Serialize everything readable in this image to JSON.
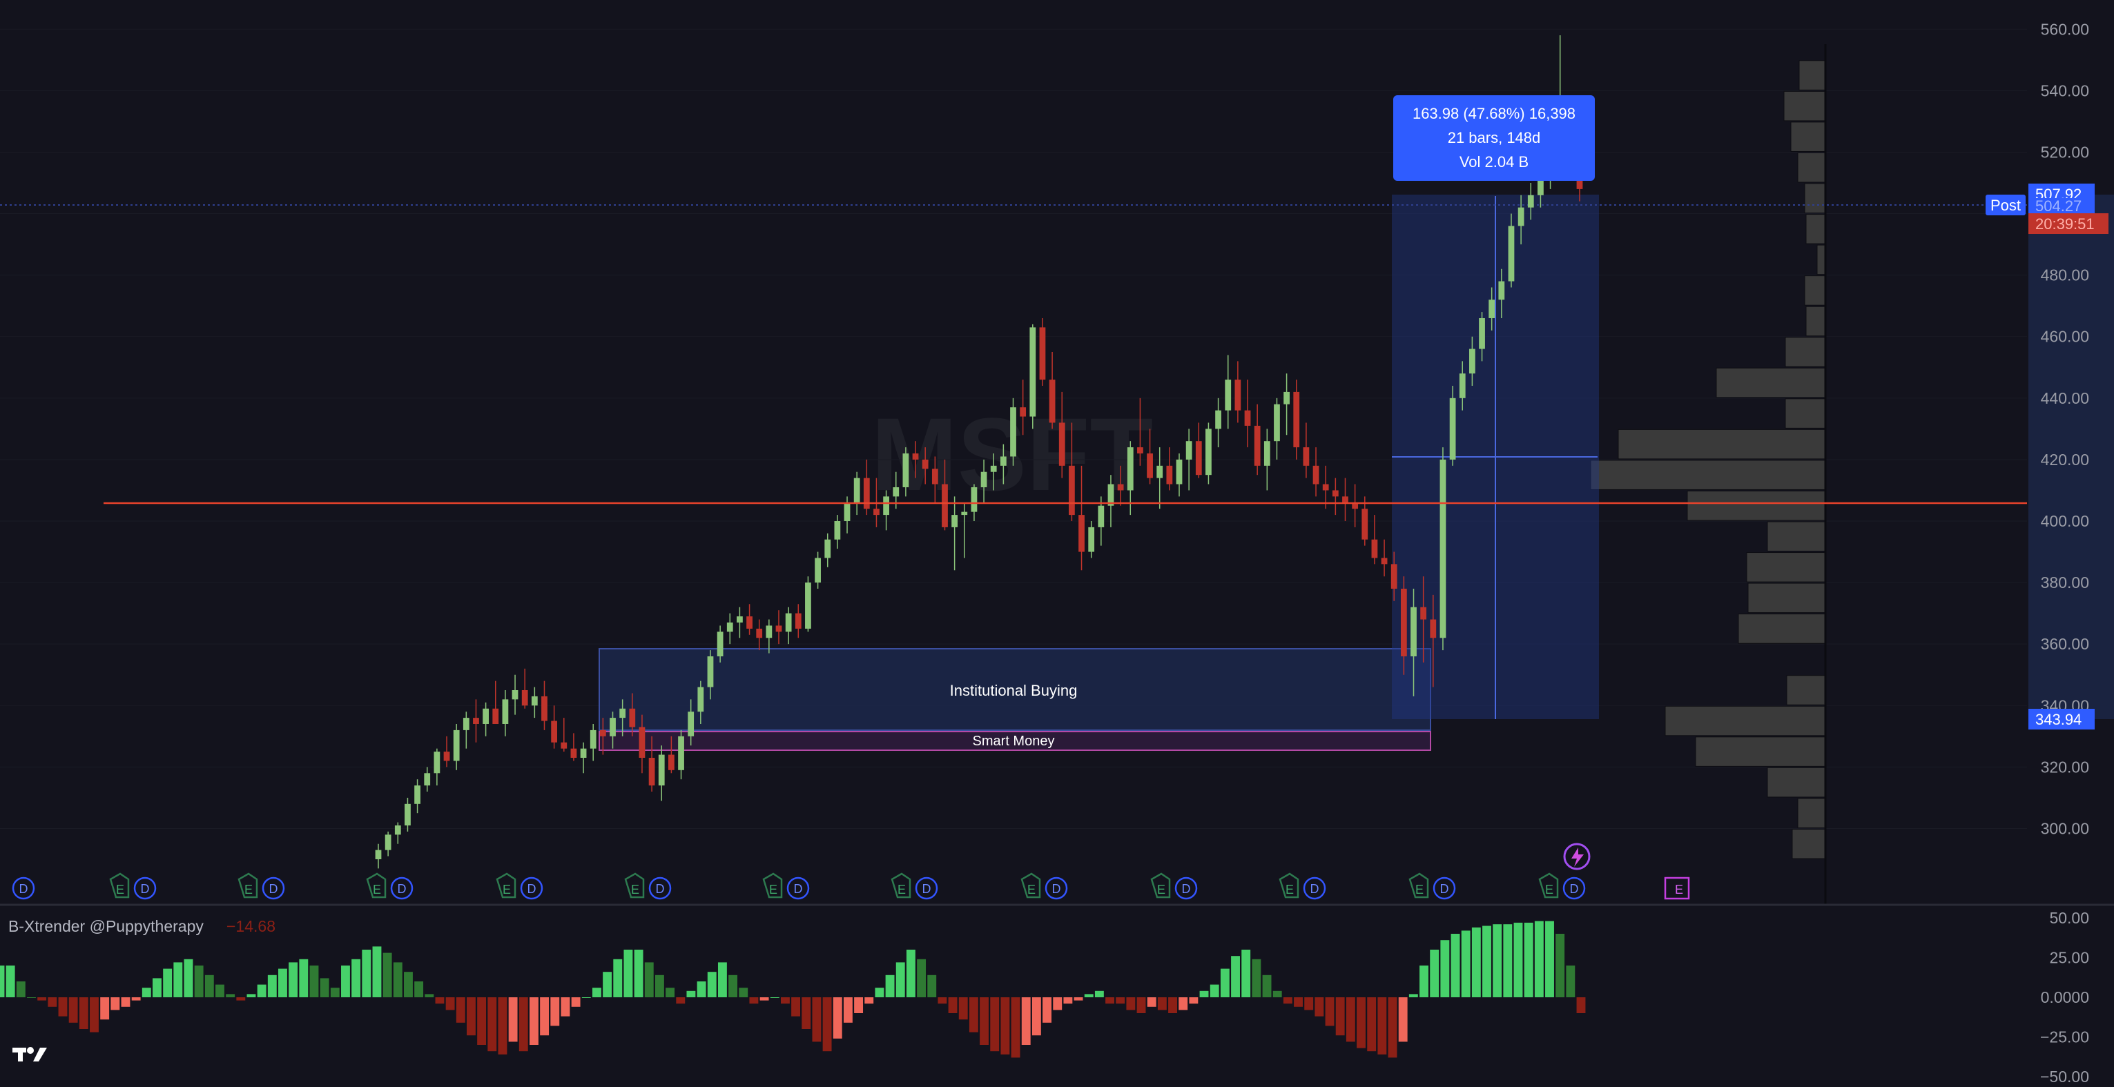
{
  "symbol_watermark": "MSFT",
  "colors": {
    "background": "#13131d",
    "up": "#8cc57a",
    "down": "#c0342b",
    "histogram_up_strong": "#47d16a",
    "histogram_up_weak": "#2f7a33",
    "histogram_down_strong": "#f0675a",
    "histogram_down_weak": "#8c2016",
    "accent_blue": "#3355ff",
    "zone_institutional": "#1e2b52",
    "zone_smart_money_border": "#b44aa6",
    "support_line": "#e8432c",
    "volume_profile": "#3a3a3a"
  },
  "measure_tooltip": {
    "line1": "163.98 (47.68%) 16,398",
    "line2": "21 bars, 148d",
    "line3": "Vol 2.04 B"
  },
  "price_axis": {
    "ticks": [
      "560.00",
      "540.00",
      "520.00",
      "500.00",
      "480.00",
      "460.00",
      "440.00",
      "420.00",
      "400.00",
      "380.00",
      "360.00",
      "340.00",
      "320.00",
      "300.00"
    ],
    "post_label": "Post",
    "last_price": "507.92",
    "post_price": "504.27",
    "countdown": "20:39:51",
    "range_low_label": "343.94"
  },
  "zones": {
    "institutional": "Institutional Buying",
    "smart_money": "Smart Money"
  },
  "events": {
    "earnings": "E",
    "dividend": "D"
  },
  "indicator": {
    "title": "B-Xtrender @Puppytherapy",
    "value": "−14.68",
    "ticks": [
      "50.00",
      "25.00",
      "0.0000",
      "−25.00",
      "−50.00"
    ]
  },
  "logo": "TV",
  "chart_data": [
    {
      "type": "candlestick",
      "title": "MSFT",
      "ylim": [
        290,
        565
      ],
      "support_level": 412,
      "measure_range": {
        "from": 343.94,
        "to": 507.92,
        "change": 163.98,
        "pct": 47.68,
        "bars": 21,
        "days": 148
      },
      "zones": [
        {
          "label": "Institutional Buying",
          "y": [
            342,
            366
          ]
        },
        {
          "label": "Smart Money",
          "y": [
            335,
            341
          ]
        }
      ],
      "candles": [
        [
          290,
          295,
          287,
          293
        ],
        [
          293,
          299,
          291,
          298
        ],
        [
          298,
          302,
          295,
          301
        ],
        [
          301,
          310,
          299,
          308
        ],
        [
          308,
          316,
          305,
          314
        ],
        [
          314,
          320,
          312,
          318
        ],
        [
          318,
          326,
          314,
          325
        ],
        [
          325,
          330,
          320,
          322
        ],
        [
          322,
          334,
          319,
          332
        ],
        [
          332,
          338,
          326,
          336
        ],
        [
          336,
          342,
          328,
          334
        ],
        [
          334,
          341,
          330,
          339
        ],
        [
          339,
          348,
          334,
          334
        ],
        [
          334,
          345,
          330,
          342
        ],
        [
          342,
          350,
          337,
          345
        ],
        [
          345,
          352,
          339,
          340
        ],
        [
          340,
          346,
          336,
          343
        ],
        [
          343,
          348,
          332,
          335
        ],
        [
          335,
          340,
          326,
          328
        ],
        [
          328,
          336,
          325,
          326
        ],
        [
          326,
          331,
          322,
          323
        ],
        [
          323,
          328,
          318,
          326
        ],
        [
          326,
          334,
          322,
          332
        ],
        [
          332,
          336,
          324,
          330
        ],
        [
          330,
          338,
          326,
          336
        ],
        [
          336,
          342,
          330,
          339
        ],
        [
          339,
          344,
          330,
          333
        ],
        [
          333,
          337,
          318,
          323
        ],
        [
          323,
          330,
          312,
          314
        ],
        [
          314,
          327,
          309,
          324
        ],
        [
          324,
          330,
          318,
          319
        ],
        [
          319,
          332,
          316,
          330
        ],
        [
          330,
          342,
          327,
          338
        ],
        [
          338,
          348,
          334,
          346
        ],
        [
          346,
          358,
          342,
          356
        ],
        [
          356,
          366,
          354,
          364
        ],
        [
          364,
          370,
          360,
          367
        ],
        [
          367,
          372,
          362,
          369
        ],
        [
          369,
          373,
          363,
          365
        ],
        [
          365,
          368,
          358,
          362
        ],
        [
          362,
          368,
          357,
          366
        ],
        [
          366,
          371,
          360,
          364
        ],
        [
          364,
          372,
          360,
          370
        ],
        [
          370,
          373,
          362,
          365
        ],
        [
          365,
          382,
          364,
          380
        ],
        [
          380,
          390,
          378,
          388
        ],
        [
          388,
          396,
          385,
          394
        ],
        [
          394,
          402,
          391,
          400
        ],
        [
          400,
          408,
          396,
          406
        ],
        [
          406,
          416,
          402,
          414
        ],
        [
          414,
          420,
          402,
          404
        ],
        [
          404,
          414,
          398,
          402
        ],
        [
          402,
          410,
          397,
          408
        ],
        [
          408,
          416,
          404,
          411
        ],
        [
          411,
          424,
          408,
          422
        ],
        [
          422,
          426,
          414,
          420
        ],
        [
          420,
          424,
          412,
          417
        ],
        [
          417,
          421,
          406,
          412
        ],
        [
          412,
          420,
          397,
          398
        ],
        [
          398,
          408,
          384,
          402
        ],
        [
          402,
          406,
          388,
          403
        ],
        [
          403,
          412,
          400,
          411
        ],
        [
          411,
          420,
          406,
          416
        ],
        [
          416,
          422,
          410,
          418
        ],
        [
          418,
          425,
          412,
          421
        ],
        [
          421,
          440,
          418,
          437
        ],
        [
          437,
          446,
          428,
          434
        ],
        [
          434,
          464,
          430,
          463
        ],
        [
          463,
          466,
          444,
          446
        ],
        [
          446,
          455,
          430,
          432
        ],
        [
          432,
          442,
          414,
          418
        ],
        [
          418,
          432,
          400,
          402
        ],
        [
          402,
          418,
          384,
          390
        ],
        [
          390,
          400,
          388,
          398
        ],
        [
          398,
          408,
          392,
          405
        ],
        [
          405,
          415,
          398,
          412
        ],
        [
          412,
          418,
          405,
          410
        ],
        [
          410,
          426,
          402,
          424
        ],
        [
          424,
          440,
          418,
          422
        ],
        [
          422,
          430,
          412,
          414
        ],
        [
          414,
          424,
          404,
          418
        ],
        [
          418,
          424,
          410,
          412
        ],
        [
          412,
          422,
          408,
          420
        ],
        [
          420,
          430,
          410,
          426
        ],
        [
          426,
          432,
          414,
          415
        ],
        [
          415,
          432,
          412,
          430
        ],
        [
          430,
          440,
          424,
          436
        ],
        [
          436,
          454,
          430,
          446
        ],
        [
          446,
          452,
          432,
          436
        ],
        [
          436,
          446,
          424,
          431
        ],
        [
          431,
          438,
          415,
          418
        ],
        [
          418,
          430,
          410,
          426
        ],
        [
          426,
          440,
          420,
          438
        ],
        [
          438,
          448,
          428,
          442
        ],
        [
          442,
          446,
          420,
          424
        ],
        [
          424,
          432,
          414,
          418
        ],
        [
          418,
          424,
          408,
          412
        ],
        [
          412,
          418,
          404,
          410
        ],
        [
          410,
          414,
          402,
          408
        ],
        [
          408,
          414,
          400,
          406
        ],
        [
          406,
          412,
          398,
          404
        ],
        [
          404,
          408,
          392,
          394
        ],
        [
          394,
          402,
          386,
          388
        ],
        [
          388,
          394,
          382,
          386
        ],
        [
          386,
          390,
          374,
          378
        ],
        [
          378,
          382,
          350,
          356
        ],
        [
          356,
          378,
          343,
          372
        ],
        [
          372,
          382,
          354,
          368
        ],
        [
          368,
          376,
          346,
          362
        ],
        [
          362,
          424,
          358,
          420
        ],
        [
          420,
          444,
          418,
          440
        ],
        [
          440,
          452,
          436,
          448
        ],
        [
          448,
          460,
          444,
          456
        ],
        [
          456,
          468,
          452,
          466
        ],
        [
          466,
          476,
          462,
          472
        ],
        [
          472,
          482,
          466,
          478
        ],
        [
          478,
          500,
          476,
          496
        ],
        [
          496,
          506,
          490,
          502
        ],
        [
          502,
          510,
          498,
          506
        ],
        [
          506,
          516,
          502,
          512
        ],
        [
          512,
          526,
          508,
          522
        ],
        [
          522,
          558,
          518,
          530
        ],
        [
          530,
          534,
          520,
          526
        ],
        [
          526,
          530,
          504,
          508
        ]
      ]
    },
    {
      "type": "histogram",
      "title": "B-Xtrender @Puppytherapy",
      "ylim": [
        -50,
        50
      ],
      "values": [
        20,
        20,
        10,
        0,
        -2,
        -6,
        -12,
        -16,
        -20,
        -22,
        -14,
        -8,
        -6,
        -2,
        6,
        12,
        18,
        22,
        24,
        20,
        14,
        8,
        2,
        -2,
        2,
        8,
        14,
        18,
        22,
        24,
        20,
        12,
        6,
        20,
        24,
        30,
        32,
        28,
        22,
        16,
        10,
        2,
        -4,
        -8,
        -16,
        -24,
        -30,
        -34,
        -36,
        -28,
        -34,
        -30,
        -24,
        -18,
        -12,
        -6,
        0,
        6,
        16,
        24,
        30,
        30,
        22,
        14,
        6,
        -4,
        4,
        10,
        16,
        22,
        14,
        6,
        -4,
        -2,
        0,
        -4,
        -12,
        -20,
        -28,
        -34,
        -26,
        -16,
        -10,
        -4,
        6,
        14,
        22,
        30,
        24,
        14,
        -4,
        -10,
        -14,
        -22,
        -30,
        -34,
        -36,
        -38,
        -30,
        -24,
        -16,
        -8,
        -4,
        -2,
        2,
        4,
        -4,
        -4,
        -8,
        -10,
        -6,
        -8,
        -10,
        -8,
        -4,
        4,
        8,
        18,
        26,
        30,
        24,
        14,
        4,
        -4,
        -6,
        -8,
        -12,
        -18,
        -24,
        -28,
        -32,
        -34,
        -36,
        -38,
        -28,
        2,
        20,
        30,
        36,
        40,
        42,
        44,
        45,
        46,
        46,
        47,
        47,
        48,
        48,
        40,
        20,
        -10
      ]
    }
  ]
}
